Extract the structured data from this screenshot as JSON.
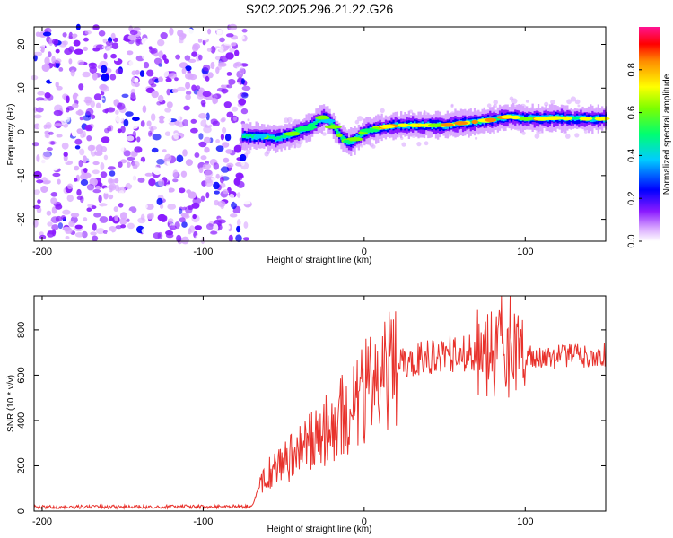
{
  "title": "S202.2025.296.21.22.G26",
  "colors": {
    "snr_line": "#e8322c",
    "frame": "#000000",
    "background": "#ffffff"
  },
  "chart_data": [
    {
      "type": "heatmap",
      "name": "spectrogram",
      "xlabel": "Height of straight line (km)",
      "ylabel": "Frequency (Hz)",
      "xlim": [
        -205,
        150
      ],
      "ylim": [
        -25,
        24
      ],
      "x_ticks": [
        -200,
        -100,
        0,
        100
      ],
      "y_ticks": [
        -20,
        -10,
        0,
        10,
        20
      ],
      "noise_region_x": [
        -205,
        -75
      ],
      "ridge": {
        "x": [
          -75,
          -65,
          -55,
          -45,
          -35,
          -25,
          -20,
          -15,
          -10,
          -5,
          0,
          5,
          10,
          20,
          30,
          40,
          50,
          60,
          70,
          80,
          90,
          100,
          110,
          120,
          130,
          140,
          150
        ],
        "freq": [
          -1,
          -1,
          -1.5,
          -0.5,
          1,
          3.5,
          1.5,
          -1,
          -2.5,
          -1.5,
          0,
          0.5,
          1,
          1.5,
          1.5,
          1.5,
          1.5,
          2,
          2.3,
          2.8,
          3.5,
          3,
          3,
          3.2,
          3,
          3,
          3
        ]
      },
      "colorbar": {
        "label": "Normalized spectral amplitude",
        "range": [
          0,
          1
        ],
        "ticks": [
          "0.0",
          "0.2",
          "0.4",
          "0.6",
          "0.8"
        ]
      }
    },
    {
      "type": "line",
      "name": "snr",
      "xlabel": "Height of straight line (km)",
      "ylabel": "SNR (10 * v/v)",
      "xlim": [
        -205,
        150
      ],
      "ylim": [
        0,
        950
      ],
      "x_ticks": [
        -200,
        -100,
        0,
        100
      ],
      "y_ticks": [
        0,
        200,
        400,
        600,
        800
      ],
      "envelope": {
        "x": [
          -205,
          -70,
          -65,
          -60,
          -40,
          -20,
          0,
          20,
          40,
          60,
          80,
          90,
          100,
          120,
          150
        ],
        "y": [
          18,
          20,
          110,
          160,
          260,
          380,
          520,
          640,
          680,
          700,
          700,
          690,
          680,
          680,
          690
        ]
      }
    }
  ]
}
